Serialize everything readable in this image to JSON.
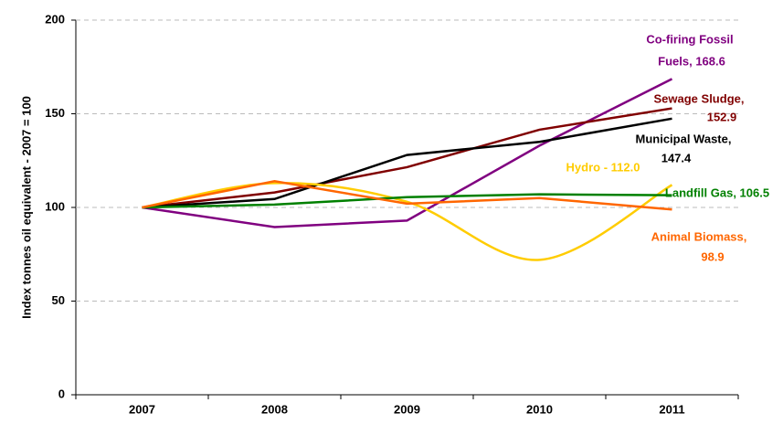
{
  "chart_data": {
    "type": "line",
    "y_label": "Index tonnes oil equivalent - 2007 = 100",
    "categories": [
      "2007",
      "2008",
      "2009",
      "2010",
      "2011"
    ],
    "ylim": [
      0,
      200
    ],
    "yticks": [
      0,
      50,
      100,
      150,
      200
    ],
    "grid": true,
    "series": [
      {
        "label": [
          "Co-firing Fossil",
          "Fuels,  168.6"
        ],
        "color": "#800080",
        "values": [
          100,
          89.5,
          93,
          133,
          168.6
        ]
      },
      {
        "label": [
          "Sewage Sludge,",
          "152.9"
        ],
        "color": "#800000",
        "values": [
          100,
          108,
          121.5,
          141.5,
          152.9
        ]
      },
      {
        "label": [
          "Municipal Waste,",
          "147.4"
        ],
        "color": "#000000",
        "values": [
          100,
          104.5,
          128,
          135,
          147.4
        ]
      },
      {
        "label": [
          "Hydro - 112.0"
        ],
        "color": "#ffcc00",
        "smooth": true,
        "values": [
          100,
          113,
          103,
          72,
          112.0
        ]
      },
      {
        "label": [
          "Landfill Gas,  106.5"
        ],
        "color": "#008000",
        "values": [
          100,
          101.5,
          105.5,
          107,
          106.5
        ]
      },
      {
        "label": [
          "Animal Biomass,",
          "98.9"
        ],
        "color": "#ff6600",
        "values": [
          100,
          114,
          102,
          105,
          98.9
        ]
      }
    ]
  }
}
